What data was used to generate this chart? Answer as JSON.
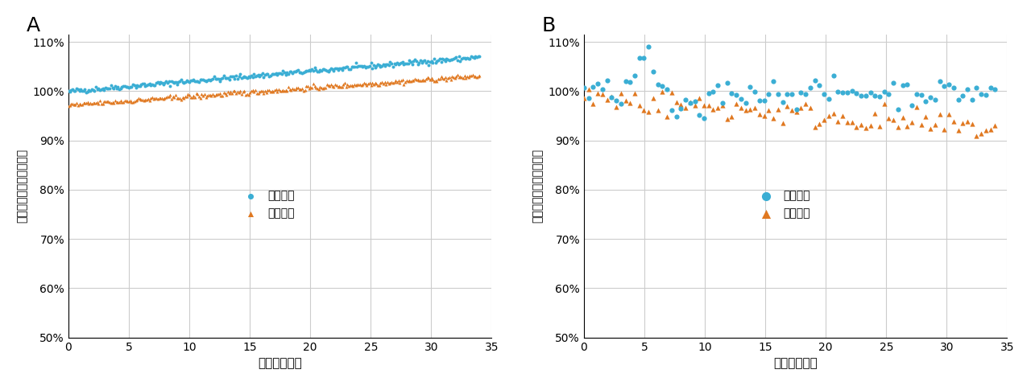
{
  "panel_A_label": "A",
  "panel_B_label": "B",
  "xlabel": "時間（時間）",
  "ylabel": "初期保持時間に対する％",
  "legend_adenine": "アデニン",
  "legend_cytosine": "シトシン",
  "color_adenine": "#3BAED4",
  "color_cytosine": "#E07820",
  "xlim": [
    0,
    35
  ],
  "ylim": [
    0.5,
    1.115
  ],
  "yticks": [
    0.5,
    0.6,
    0.7,
    0.8,
    0.9,
    1.0,
    1.1
  ],
  "ytick_labels": [
    "50%",
    "60%",
    "70%",
    "80%",
    "90%",
    "100%",
    "110%"
  ],
  "xticks": [
    0,
    5,
    10,
    15,
    20,
    25,
    30,
    35
  ],
  "background_color": "#ffffff",
  "grid_color": "#cccccc"
}
